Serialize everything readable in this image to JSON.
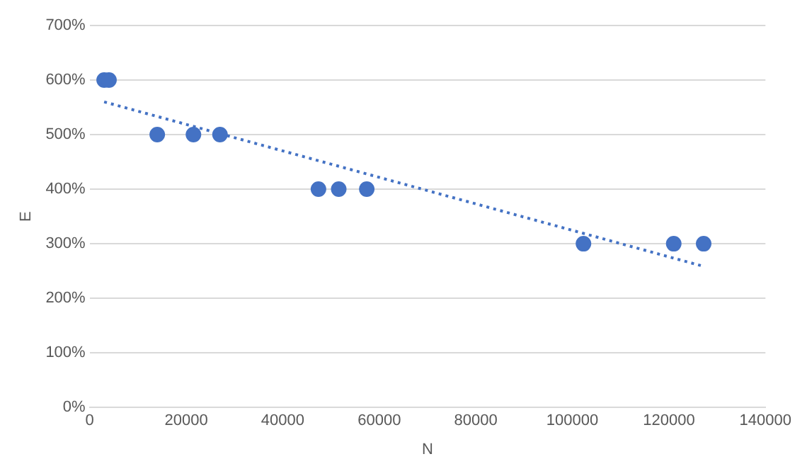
{
  "chart_data": {
    "type": "scatter",
    "xlabel": "N",
    "ylabel": "E",
    "series": [
      {
        "type": "scatter",
        "color": "#4472c4",
        "marker": "circle",
        "x": [
          3000,
          4000,
          14000,
          21500,
          27000,
          47400,
          51600,
          57400,
          102300,
          121000,
          127200
        ],
        "values": [
          600,
          600,
          500,
          500,
          500,
          400,
          400,
          400,
          300,
          300,
          300
        ]
      },
      {
        "type": "line",
        "color": "#4472c4",
        "marker": "none",
        "line_style": "dotted",
        "x": [
          3000,
          126600
        ],
        "values": [
          560,
          260
        ]
      }
    ],
    "xlim": [
      0,
      140000
    ],
    "xticks": [
      0,
      20000,
      40000,
      60000,
      80000,
      100000,
      120000,
      140000
    ],
    "ylim": [
      0,
      700
    ],
    "yticks": [
      {
        "value": 0,
        "label": "0%"
      },
      {
        "value": 100,
        "label": "100%"
      },
      {
        "value": 200,
        "label": "200%"
      },
      {
        "value": 300,
        "label": "300%"
      },
      {
        "value": 400,
        "label": "400%"
      },
      {
        "value": 500,
        "label": "500%"
      },
      {
        "value": 600,
        "label": "600%"
      },
      {
        "value": 700,
        "label": "700%"
      }
    ],
    "grid": "y",
    "legend": false
  }
}
